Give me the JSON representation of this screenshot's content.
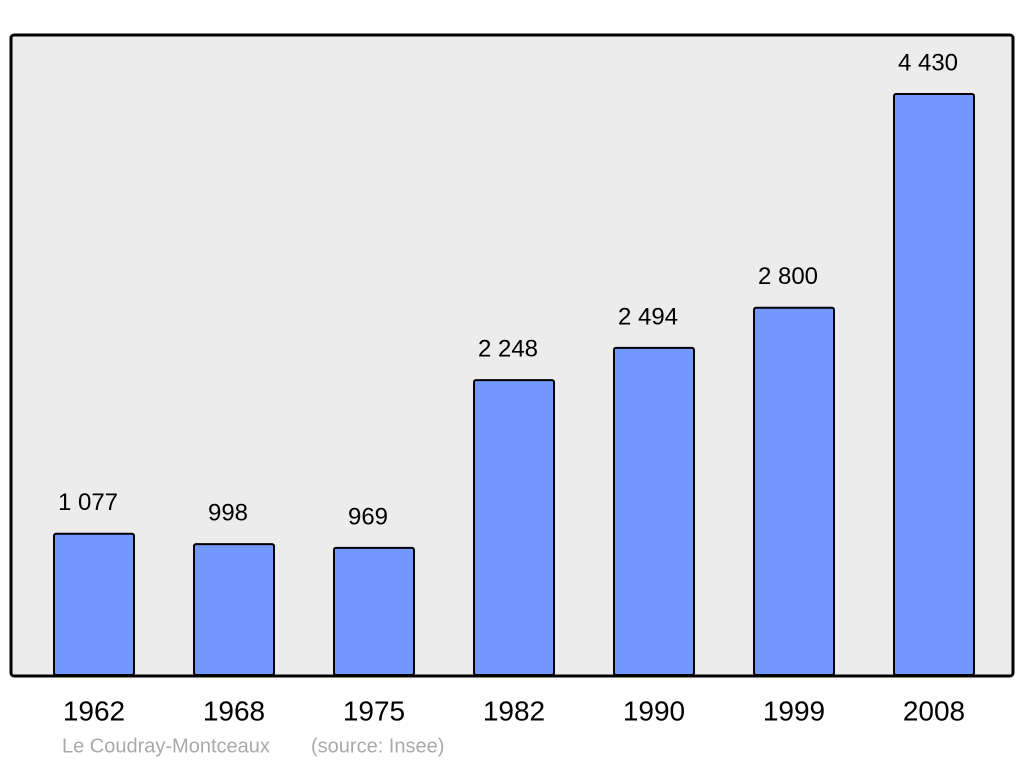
{
  "chart_data": {
    "type": "bar",
    "categories": [
      "1962",
      "1968",
      "1975",
      "1982",
      "1990",
      "1999",
      "2008"
    ],
    "values": [
      1077,
      998,
      969,
      2248,
      2494,
      2800,
      4430
    ],
    "value_labels": [
      "1 077",
      "998",
      "969",
      "2 248",
      "2 494",
      "2 800",
      "4 430"
    ],
    "color": "#7398ff",
    "caption": "Le Coudray-Montceaux",
    "source": "(source: Insee)"
  }
}
